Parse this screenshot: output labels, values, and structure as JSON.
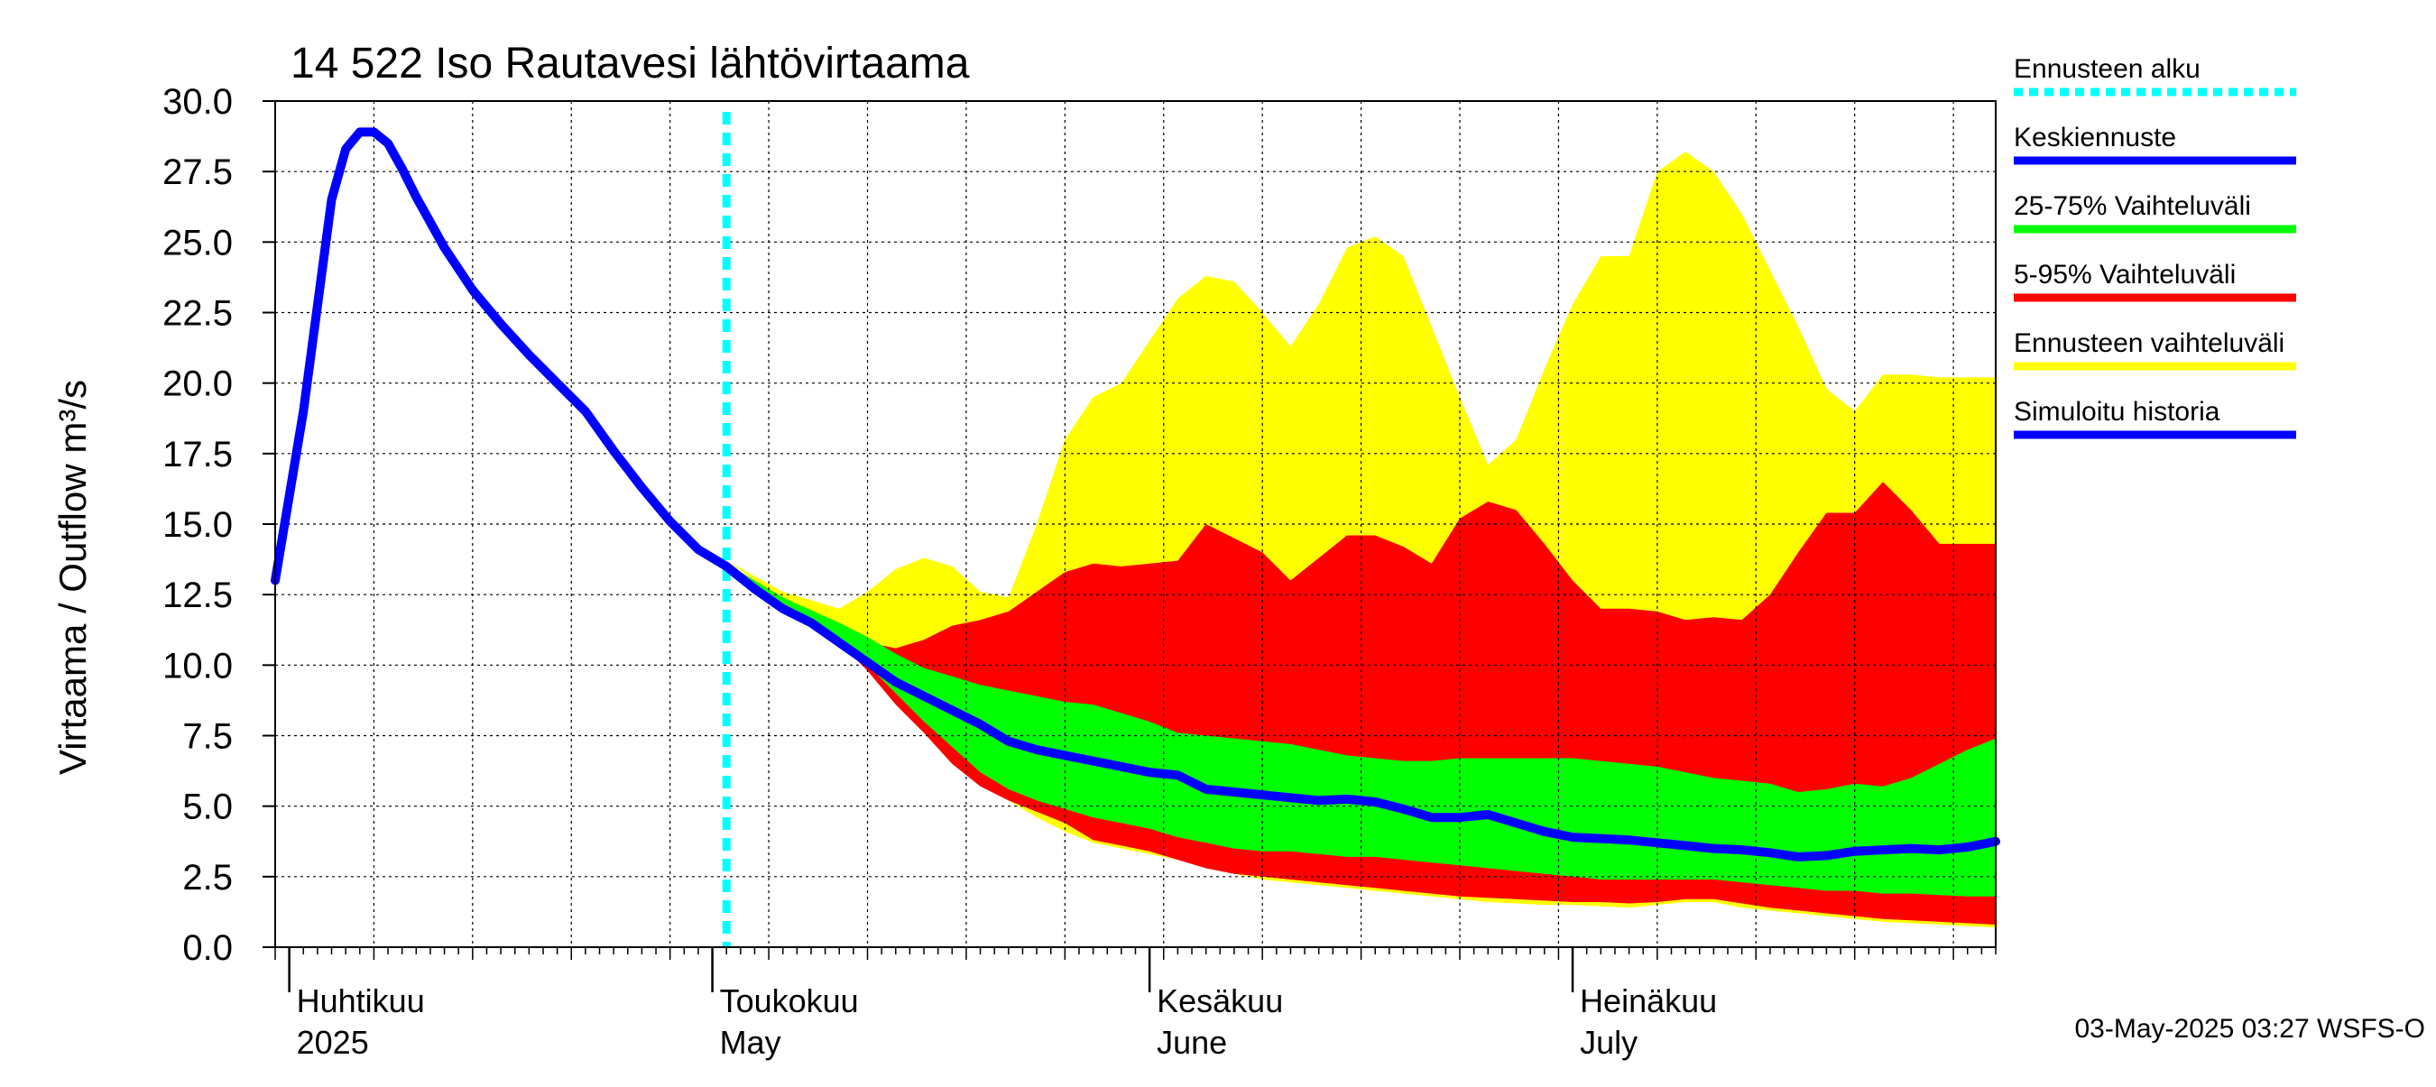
{
  "chart_data": {
    "type": "area",
    "title": "14 522 Iso Rautavesi lähtövirtaama",
    "ylabel": "Virtaama / Outflow    m³/s",
    "ylim": [
      0,
      30
    ],
    "yticks": [
      "0.0",
      "2.5",
      "5.0",
      "7.5",
      "10.0",
      "12.5",
      "15.0",
      "17.5",
      "20.0",
      "22.5",
      "25.0",
      "27.5",
      "30.0"
    ],
    "x_range": [
      "2025-03-31",
      "2025-07-31"
    ],
    "forecast_start": "2025-05-02",
    "months": [
      {
        "date": "2025-04-01",
        "label_fi": "Huhtikuu",
        "label_en": "2025"
      },
      {
        "date": "2025-05-01",
        "label_fi": "Toukokuu",
        "label_en": "May"
      },
      {
        "date": "2025-06-01",
        "label_fi": "Kesäkuu",
        "label_en": "June"
      },
      {
        "date": "2025-07-01",
        "label_fi": "Heinäkuu",
        "label_en": "July"
      }
    ],
    "colors": {
      "forecast_start": "#00ffff",
      "mean": "#0000ff",
      "p25_75": "#00ff00",
      "p5_95": "#ff0000",
      "range": "#ffff00",
      "history": "#0000ff"
    },
    "history": {
      "name": "Simuloitu historia",
      "x": [
        "2025-03-31",
        "2025-04-02",
        "2025-04-04",
        "2025-04-05",
        "2025-04-06",
        "2025-04-07",
        "2025-04-08",
        "2025-04-09",
        "2025-04-10",
        "2025-04-12",
        "2025-04-14",
        "2025-04-16",
        "2025-04-18",
        "2025-04-20",
        "2025-04-22",
        "2025-04-24",
        "2025-04-26",
        "2025-04-28",
        "2025-04-30",
        "2025-05-02"
      ],
      "y": [
        13.0,
        19.0,
        26.5,
        28.3,
        28.9,
        28.9,
        28.5,
        27.6,
        26.6,
        24.8,
        23.3,
        22.1,
        21.0,
        20.0,
        19.0,
        17.6,
        16.3,
        15.1,
        14.1,
        13.5
      ]
    },
    "range": {
      "name": "Ennusteen vaihteluväli",
      "x": [
        "2025-05-02",
        "2025-05-06",
        "2025-05-10",
        "2025-05-12",
        "2025-05-14",
        "2025-05-16",
        "2025-05-18",
        "2025-05-20",
        "2025-05-22",
        "2025-05-24",
        "2025-05-26",
        "2025-05-28",
        "2025-05-30",
        "2025-06-01",
        "2025-06-03",
        "2025-06-05",
        "2025-06-07",
        "2025-06-09",
        "2025-06-11",
        "2025-06-13",
        "2025-06-15",
        "2025-06-17",
        "2025-06-19",
        "2025-06-21",
        "2025-06-23",
        "2025-06-25",
        "2025-06-27",
        "2025-06-29",
        "2025-07-01",
        "2025-07-03",
        "2025-07-05",
        "2025-07-07",
        "2025-07-09",
        "2025-07-11",
        "2025-07-13",
        "2025-07-15",
        "2025-07-17",
        "2025-07-19",
        "2025-07-21",
        "2025-07-23",
        "2025-07-25",
        "2025-07-27",
        "2025-07-29",
        "2025-07-31"
      ],
      "upper": [
        13.7,
        12.6,
        12.0,
        12.6,
        13.4,
        13.8,
        13.5,
        12.6,
        12.4,
        15.0,
        18.0,
        19.5,
        20.0,
        21.5,
        23.0,
        23.8,
        23.6,
        22.5,
        21.3,
        22.8,
        24.8,
        25.2,
        24.5,
        22.0,
        19.5,
        17.1,
        18.0,
        20.5,
        22.8,
        24.5,
        24.5,
        27.5,
        28.2,
        27.5,
        26.0,
        24.0,
        22.0,
        19.8,
        19.0,
        20.3,
        20.3,
        20.2,
        20.2,
        20.2
      ],
      "lower": [
        13.7,
        12.3,
        10.9,
        10.0,
        9.0,
        8.0,
        7.0,
        6.0,
        5.2,
        4.6,
        4.1,
        3.7,
        3.5,
        3.3,
        3.1,
        2.9,
        2.6,
        2.4,
        2.3,
        2.2,
        2.1,
        2.0,
        1.9,
        1.8,
        1.7,
        1.6,
        1.55,
        1.5,
        1.5,
        1.45,
        1.4,
        1.5,
        1.6,
        1.6,
        1.4,
        1.3,
        1.2,
        1.1,
        1.0,
        0.9,
        0.85,
        0.8,
        0.75,
        0.7
      ]
    },
    "p5_95": {
      "name": "5-95% Vaihteluväli",
      "x": [
        "2025-05-02",
        "2025-05-06",
        "2025-05-10",
        "2025-05-12",
        "2025-05-14",
        "2025-05-16",
        "2025-05-18",
        "2025-05-20",
        "2025-05-22",
        "2025-05-24",
        "2025-05-26",
        "2025-05-28",
        "2025-05-30",
        "2025-06-01",
        "2025-06-03",
        "2025-06-05",
        "2025-06-07",
        "2025-06-09",
        "2025-06-11",
        "2025-06-13",
        "2025-06-15",
        "2025-06-17",
        "2025-06-19",
        "2025-06-21",
        "2025-06-23",
        "2025-06-25",
        "2025-06-27",
        "2025-06-29",
        "2025-07-01",
        "2025-07-03",
        "2025-07-05",
        "2025-07-07",
        "2025-07-09",
        "2025-07-11",
        "2025-07-13",
        "2025-07-15",
        "2025-07-17",
        "2025-07-19",
        "2025-07-21",
        "2025-07-23",
        "2025-07-25",
        "2025-07-27",
        "2025-07-29",
        "2025-07-31"
      ],
      "upper": [
        13.6,
        12.4,
        11.4,
        10.8,
        10.6,
        10.9,
        11.4,
        11.6,
        11.9,
        12.6,
        13.3,
        13.6,
        13.5,
        13.6,
        13.7,
        15.0,
        14.5,
        14.0,
        13.0,
        13.8,
        14.6,
        14.6,
        14.2,
        13.6,
        15.2,
        15.8,
        15.5,
        14.3,
        13.0,
        12.0,
        12.0,
        11.9,
        11.6,
        11.7,
        11.6,
        12.5,
        14.0,
        15.4,
        15.4,
        16.5,
        15.5,
        14.3,
        14.3,
        14.3
      ],
      "lower": [
        13.6,
        12.2,
        10.8,
        9.8,
        8.6,
        7.6,
        6.5,
        5.7,
        5.2,
        4.8,
        4.4,
        3.8,
        3.6,
        3.4,
        3.1,
        2.8,
        2.6,
        2.5,
        2.4,
        2.3,
        2.2,
        2.1,
        2.0,
        1.9,
        1.8,
        1.75,
        1.7,
        1.65,
        1.6,
        1.6,
        1.55,
        1.6,
        1.7,
        1.7,
        1.55,
        1.4,
        1.3,
        1.2,
        1.1,
        1.0,
        0.95,
        0.9,
        0.85,
        0.8
      ]
    },
    "p25_75": {
      "name": "25-75% Vaihteluväli",
      "x": [
        "2025-05-02",
        "2025-05-06",
        "2025-05-10",
        "2025-05-12",
        "2025-05-14",
        "2025-05-16",
        "2025-05-18",
        "2025-05-20",
        "2025-05-22",
        "2025-05-24",
        "2025-05-26",
        "2025-05-28",
        "2025-05-30",
        "2025-06-01",
        "2025-06-03",
        "2025-06-05",
        "2025-06-07",
        "2025-06-09",
        "2025-06-11",
        "2025-06-13",
        "2025-06-15",
        "2025-06-17",
        "2025-06-19",
        "2025-06-21",
        "2025-06-23",
        "2025-06-25",
        "2025-06-27",
        "2025-06-29",
        "2025-07-01",
        "2025-07-03",
        "2025-07-05",
        "2025-07-07",
        "2025-07-09",
        "2025-07-11",
        "2025-07-13",
        "2025-07-15",
        "2025-07-17",
        "2025-07-19",
        "2025-07-21",
        "2025-07-23",
        "2025-07-25",
        "2025-07-27",
        "2025-07-29",
        "2025-07-31"
      ],
      "upper": [
        13.6,
        12.4,
        11.5,
        11.0,
        10.4,
        9.9,
        9.6,
        9.3,
        9.1,
        8.9,
        8.7,
        8.6,
        8.3,
        8.0,
        7.6,
        7.5,
        7.4,
        7.3,
        7.2,
        7.0,
        6.8,
        6.7,
        6.6,
        6.6,
        6.7,
        6.7,
        6.7,
        6.7,
        6.7,
        6.6,
        6.5,
        6.4,
        6.2,
        6.0,
        5.9,
        5.8,
        5.5,
        5.6,
        5.8,
        5.7,
        6.0,
        6.5,
        7.0,
        7.4
      ],
      "lower": [
        13.6,
        12.2,
        11.0,
        10.0,
        9.0,
        8.0,
        7.1,
        6.2,
        5.6,
        5.2,
        4.9,
        4.6,
        4.4,
        4.2,
        3.9,
        3.7,
        3.5,
        3.4,
        3.4,
        3.3,
        3.2,
        3.2,
        3.1,
        3.0,
        2.9,
        2.8,
        2.7,
        2.6,
        2.5,
        2.4,
        2.4,
        2.4,
        2.4,
        2.4,
        2.3,
        2.2,
        2.1,
        2.0,
        2.0,
        1.9,
        1.9,
        1.85,
        1.8,
        1.8
      ]
    },
    "mean": {
      "name": "Keskiennuste",
      "x": [
        "2025-05-02",
        "2025-05-04",
        "2025-05-06",
        "2025-05-08",
        "2025-05-10",
        "2025-05-12",
        "2025-05-14",
        "2025-05-16",
        "2025-05-18",
        "2025-05-20",
        "2025-05-22",
        "2025-05-24",
        "2025-05-26",
        "2025-05-28",
        "2025-05-30",
        "2025-06-01",
        "2025-06-03",
        "2025-06-05",
        "2025-06-07",
        "2025-06-09",
        "2025-06-11",
        "2025-06-13",
        "2025-06-15",
        "2025-06-17",
        "2025-06-19",
        "2025-06-21",
        "2025-06-23",
        "2025-06-25",
        "2025-06-27",
        "2025-06-29",
        "2025-07-01",
        "2025-07-03",
        "2025-07-05",
        "2025-07-07",
        "2025-07-09",
        "2025-07-11",
        "2025-07-13",
        "2025-07-15",
        "2025-07-17",
        "2025-07-19",
        "2025-07-21",
        "2025-07-23",
        "2025-07-25",
        "2025-07-27",
        "2025-07-29",
        "2025-07-31"
      ],
      "y": [
        13.5,
        12.7,
        12.0,
        11.5,
        10.8,
        10.1,
        9.4,
        8.9,
        8.4,
        7.9,
        7.3,
        7.0,
        6.8,
        6.6,
        6.4,
        6.2,
        6.1,
        5.6,
        5.5,
        5.4,
        5.3,
        5.2,
        5.25,
        5.15,
        4.9,
        4.6,
        4.6,
        4.7,
        4.4,
        4.1,
        3.9,
        3.85,
        3.8,
        3.7,
        3.6,
        3.5,
        3.45,
        3.35,
        3.2,
        3.25,
        3.4,
        3.45,
        3.5,
        3.45,
        3.55,
        3.75
      ]
    }
  },
  "legend": {
    "items": [
      {
        "label": "Ennusteen alku",
        "color": "#00ffff",
        "style": "dotted"
      },
      {
        "label": "Keskiennuste",
        "color": "#0000ff",
        "style": "solid"
      },
      {
        "label": "25-75% Vaihteluväli",
        "color": "#00ff00",
        "style": "solid"
      },
      {
        "label": "5-95% Vaihteluväli",
        "color": "#ff0000",
        "style": "solid"
      },
      {
        "label": "Ennusteen vaihteluväli",
        "color": "#ffff00",
        "style": "solid"
      },
      {
        "label": "Simuloitu historia",
        "color": "#0000ff",
        "style": "solid"
      }
    ]
  },
  "footer": {
    "timestamp": "03-May-2025 03:27 WSFS-O"
  }
}
